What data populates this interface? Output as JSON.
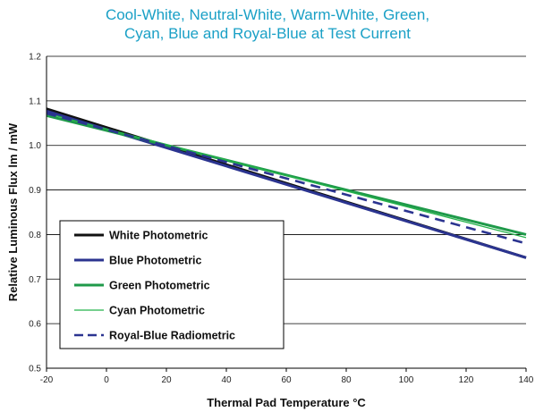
{
  "title_lines": [
    "Cool-White, Neutral-White, Warm-White, Green,",
    "Cyan, Blue and Royal-Blue at Test Current"
  ],
  "chart_data": {
    "type": "line",
    "title": "Cool-White, Neutral-White, Warm-White, Green, Cyan, Blue and Royal-Blue at Test Current",
    "xlabel": "Thermal Pad Temperature °C",
    "ylabel": "Relative Luminous Flux lm / mW",
    "xlim": [
      -20,
      140
    ],
    "ylim": [
      0.5,
      1.2
    ],
    "xticks": [
      "-20",
      "0",
      "20",
      "40",
      "60",
      "80",
      "100",
      "120",
      "140"
    ],
    "yticks": [
      "0.5",
      "0.6",
      "0.7",
      "0.8",
      "0.9",
      "1.0",
      "1.1",
      "1.2"
    ],
    "grid": "horizontal",
    "legend_position": "bottom-left",
    "series": [
      {
        "name": "White Photometric",
        "x": [
          -20,
          140
        ],
        "y": [
          1.082,
          0.748
        ],
        "color": "#111111",
        "width": 3,
        "dash": ""
      },
      {
        "name": "Blue Photometric",
        "x": [
          -20,
          140
        ],
        "y": [
          1.077,
          0.748
        ],
        "color": "#2b3490",
        "width": 3,
        "dash": ""
      },
      {
        "name": "Green Photometric",
        "x": [
          -20,
          140
        ],
        "y": [
          1.067,
          0.8
        ],
        "color": "#1f9a4a",
        "width": 3,
        "dash": ""
      },
      {
        "name": "Cyan Photometric",
        "x": [
          -20,
          140
        ],
        "y": [
          1.072,
          0.793
        ],
        "color": "#25b34b",
        "width": 1.3,
        "dash": ""
      },
      {
        "name": "Royal-Blue Radiometric",
        "x": [
          -20,
          140
        ],
        "y": [
          1.072,
          0.78
        ],
        "color": "#2b3490",
        "width": 2.6,
        "dash": "11,7"
      }
    ]
  }
}
